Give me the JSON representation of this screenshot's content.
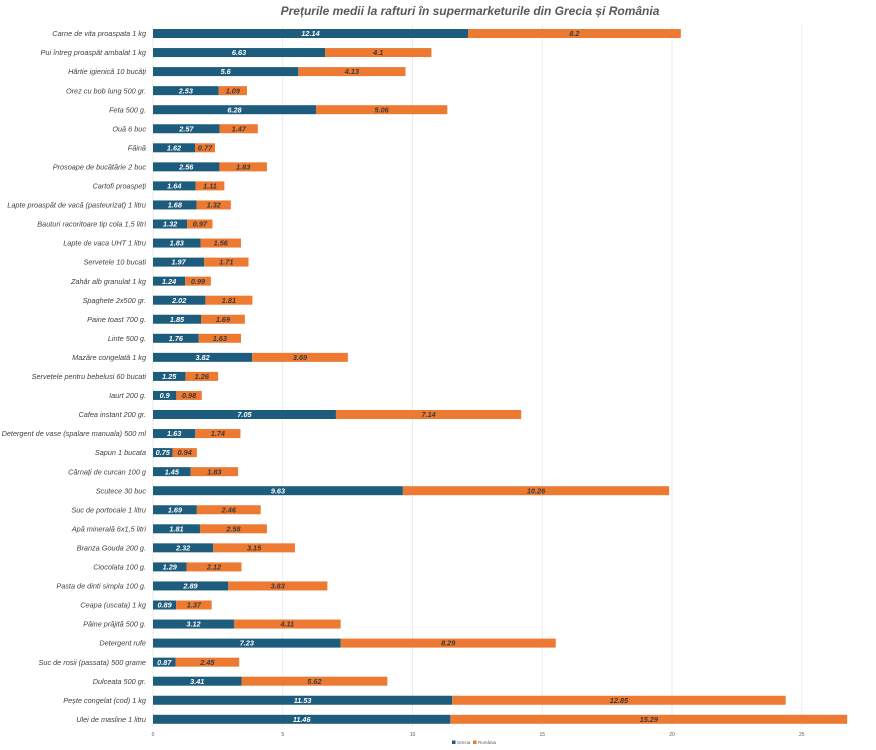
{
  "chart_data": {
    "type": "bar",
    "orientation": "horizontal",
    "stacked": true,
    "title": "Prețurile medii la rafturi în supermarketurile din Grecia și România",
    "xlabel": "",
    "ylabel": "",
    "xlim": [
      0,
      30
    ],
    "xticks": [
      0,
      5,
      10,
      15,
      20,
      25
    ],
    "grid": true,
    "legend_position": "bottom",
    "categories": [
      "Carne de vita proaspata 1 kg",
      "Pui întreg proaspăt ambalat 1 kg",
      "Hârtie igienică 10 bucăți",
      "Orez cu bob lung 500 gr.",
      "Feta 500 g.",
      "Ouă 6 buc",
      "Făină",
      "Prosoape de bucătărie 2 buc",
      "Cartofi proaspeți",
      "Lapte proaspăt de vacă (pasteurizat) 1 litru",
      "Bauturi racoritoare tip cola 1,5 litri",
      "Lapte de vaca UHT 1 litru",
      "Servetele 10 bucati",
      "Zahăr alb granulat 1 kg",
      "Spaghete 2x500 gr.",
      "Paine toast 700 g.",
      "Linte 500 g.",
      "Mazăre congelată 1 kg",
      "Servetele pentru bebelusi 60 bucati",
      "Iaurt 200 g.",
      "Cafea instant 200 gr.",
      "Detergent de vase (spalare manuala) 500 ml",
      "Sapun 1 bucata",
      "Cârnați de curcan 100 g",
      "Scutece 30 buc",
      "Suc de portocale 1 litru",
      "Apă minerală 6x1,5 litri",
      "Branza Gouda 200 g.",
      "Ciocolata 100 g.",
      "Pasta de dinti simpla 100 g.",
      "Ceapa (uscata) 1 kg",
      "Pâine prăjită 500 g.",
      "Detergent rufe",
      "Suc de rosii (passata) 500 grame",
      "Dulceata 500 gr.",
      "Pește congelat (cod) 1 kg",
      "Ulei de masline 1 litru"
    ],
    "series": [
      {
        "name": "Grecia",
        "color": "#1d5c7d",
        "label_color": "#ffffff",
        "values": [
          12.14,
          6.63,
          5.6,
          2.53,
          6.28,
          2.57,
          1.62,
          2.56,
          1.64,
          1.68,
          1.32,
          1.83,
          1.97,
          1.24,
          2.02,
          1.85,
          1.76,
          3.82,
          1.25,
          0.9,
          7.05,
          1.63,
          0.75,
          1.45,
          9.63,
          1.69,
          1.81,
          2.32,
          1.29,
          2.89,
          0.89,
          3.12,
          7.23,
          0.87,
          3.41,
          11.53,
          11.46
        ]
      },
      {
        "name": "România",
        "color": "#ec7a32",
        "label_color": "#3a3a3a",
        "values": [
          8.2,
          4.1,
          4.13,
          1.09,
          5.06,
          1.47,
          0.77,
          1.83,
          1.11,
          1.32,
          0.97,
          1.56,
          1.71,
          0.99,
          1.81,
          1.69,
          1.63,
          3.69,
          1.26,
          0.98,
          7.14,
          1.74,
          0.94,
          1.83,
          10.26,
          2.46,
          2.58,
          3.15,
          2.12,
          3.83,
          1.37,
          4.11,
          8.29,
          2.45,
          5.62,
          12.85,
          15.29
        ]
      }
    ]
  }
}
